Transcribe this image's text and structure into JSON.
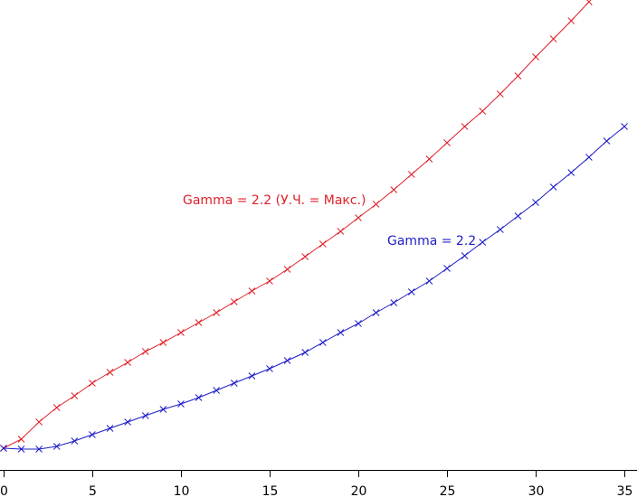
{
  "chart_data": {
    "type": "line",
    "x": [
      0,
      1,
      2,
      3,
      4,
      5,
      6,
      7,
      8,
      9,
      10,
      11,
      12,
      13,
      14,
      15,
      16,
      17,
      18,
      19,
      20,
      21,
      22,
      23,
      24,
      25,
      26,
      27,
      28,
      29,
      30,
      31,
      32,
      33,
      34,
      35
    ],
    "series": [
      {
        "name": "Gamma = 2.2 (У.Ч. = Макс.)",
        "color": "#e0202a",
        "values": [
          4.8,
          6.8,
          10.6,
          13.8,
          16.4,
          19.2,
          21.6,
          23.8,
          26.2,
          28.2,
          30.4,
          32.6,
          34.8,
          37.2,
          39.6,
          41.8,
          44.4,
          47.2,
          50,
          52.8,
          55.8,
          58.8,
          62,
          65.4,
          68.8,
          72.4,
          76,
          79.4,
          83.2,
          87.2,
          91.4,
          95.4,
          99.4,
          103.6,
          null,
          null
        ]
      },
      {
        "name": "Gamma = 2.2",
        "color": "#1c1cc8",
        "values": [
          4.8,
          4.6,
          4.6,
          5.2,
          6.4,
          7.8,
          9.2,
          10.6,
          12,
          13.4,
          14.6,
          16,
          17.6,
          19.2,
          20.8,
          22.4,
          24.2,
          26,
          28.2,
          30.4,
          32.4,
          34.8,
          37,
          39.4,
          41.8,
          44.6,
          47.4,
          50.4,
          53.2,
          56.2,
          59.2,
          62.6,
          65.8,
          69.2,
          72.8,
          76
        ]
      }
    ],
    "xlim": [
      -0.2,
      35.71
    ],
    "ylim": [
      0,
      104
    ],
    "xticks": [
      0,
      5,
      10,
      15,
      20,
      25,
      30,
      35
    ]
  }
}
